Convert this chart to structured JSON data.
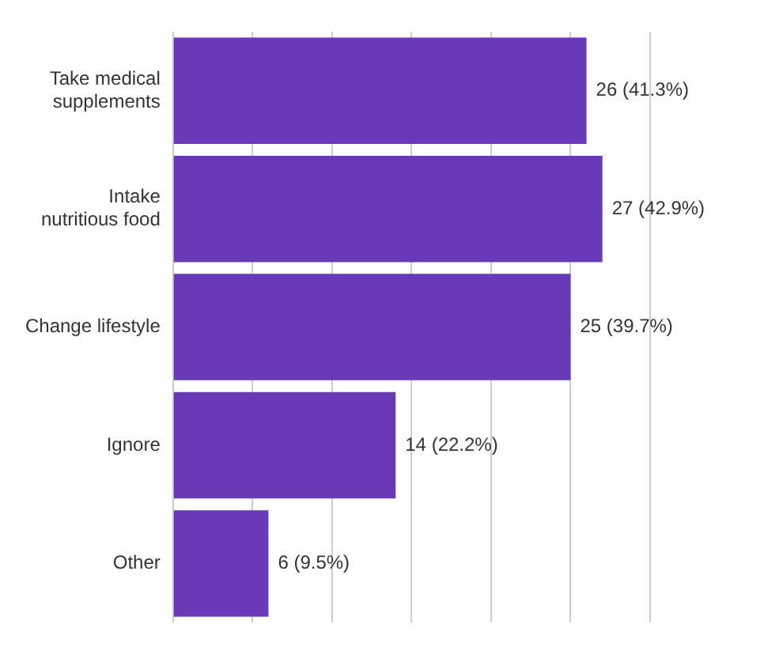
{
  "chart_data": {
    "type": "bar",
    "orientation": "horizontal",
    "categories": [
      "Take medical supplements",
      "Intake nutritious food",
      "Change lifestyle",
      "Ignore",
      "Other"
    ],
    "values": [
      26,
      27,
      25,
      14,
      6
    ],
    "value_labels": [
      "26 (41.3%)",
      "27 (42.9%)",
      "25 (39.7%)",
      "14 (22.2%)",
      "6 (9.5%)"
    ],
    "color": "#673ab7",
    "xlim": [
      0,
      30
    ],
    "xticks": [
      {
        "value": 0,
        "label": null
      },
      {
        "value": 5,
        "label": null
      },
      {
        "value": 10,
        "label": null
      },
      {
        "value": 15,
        "label": null
      },
      {
        "value": 20,
        "label": null
      },
      {
        "value": 25,
        "label": null
      },
      {
        "value": 30,
        "label": null
      }
    ],
    "grid": "x",
    "tick_labels": "y"
  }
}
